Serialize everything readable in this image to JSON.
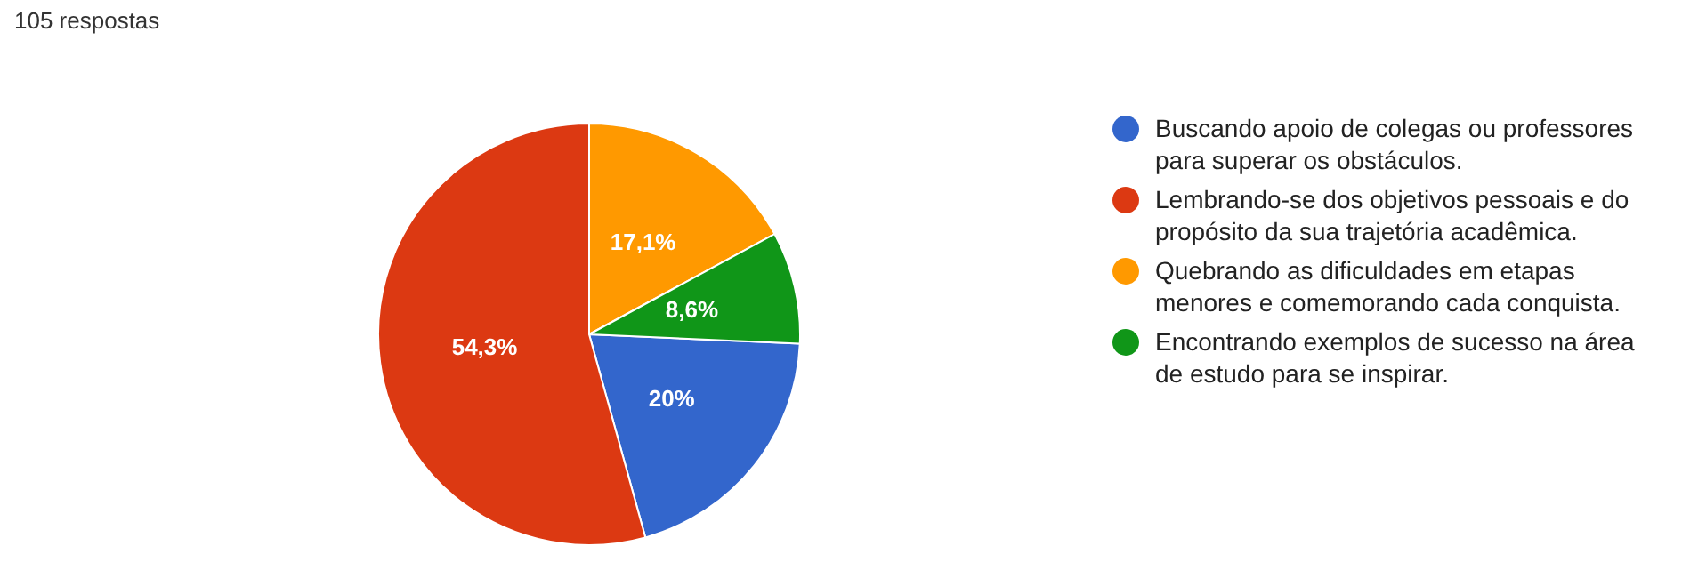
{
  "chart_data": {
    "type": "pie",
    "title": "105 respostas",
    "categories": [
      "Buscando apoio de colegas ou professores para superar os obstáculos.",
      "Lembrando-se dos objetivos pessoais e do propósito da sua trajetória acadêmica.",
      "Quebrando as dificuldades em etapas menores e comemorando cada conquista.",
      "Encontrando exemplos de sucesso na área de estudo para se inspirar."
    ],
    "values": [
      20,
      54.3,
      17.1,
      8.6
    ],
    "value_labels": [
      "20%",
      "54,3%",
      "17,1%",
      "8,6%"
    ],
    "colors": [
      "#3366cc",
      "#dc3912",
      "#ff9900",
      "#109618"
    ],
    "legend": "right"
  }
}
